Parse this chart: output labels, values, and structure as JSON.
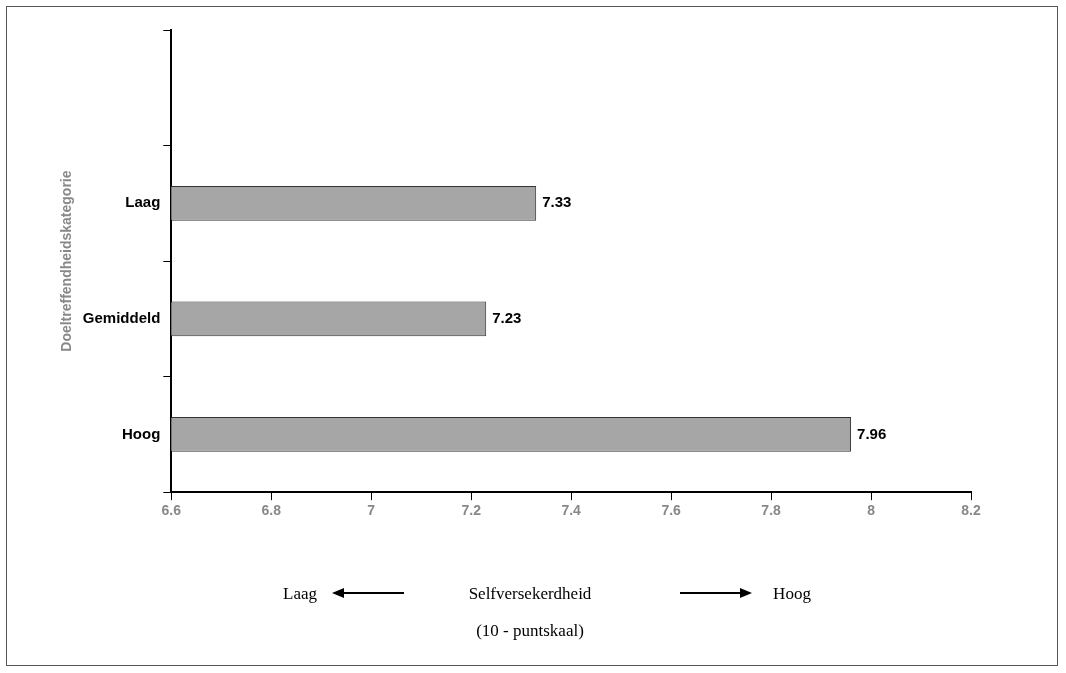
{
  "chart_data": {
    "type": "bar",
    "orientation": "horizontal",
    "xlabel": "Selfversekerdheid",
    "ylabel": "Doeltreffendheidskategorie",
    "annotations": [
      "Laag",
      "Hoog",
      "(10 - puntskaal)"
    ],
    "categories": [
      null,
      "Laag",
      "Gemiddeld",
      "Hoog"
    ],
    "values": [
      null,
      7.33,
      7.23,
      7.96
    ],
    "color": "#a6a6a6",
    "xlim": [
      6.6,
      8.2
    ],
    "xticks": [
      6.6,
      6.8,
      7,
      7.2,
      7.4,
      7.6,
      7.8,
      8,
      8.2
    ],
    "data_labels": true,
    "grid": false,
    "legend": false
  }
}
